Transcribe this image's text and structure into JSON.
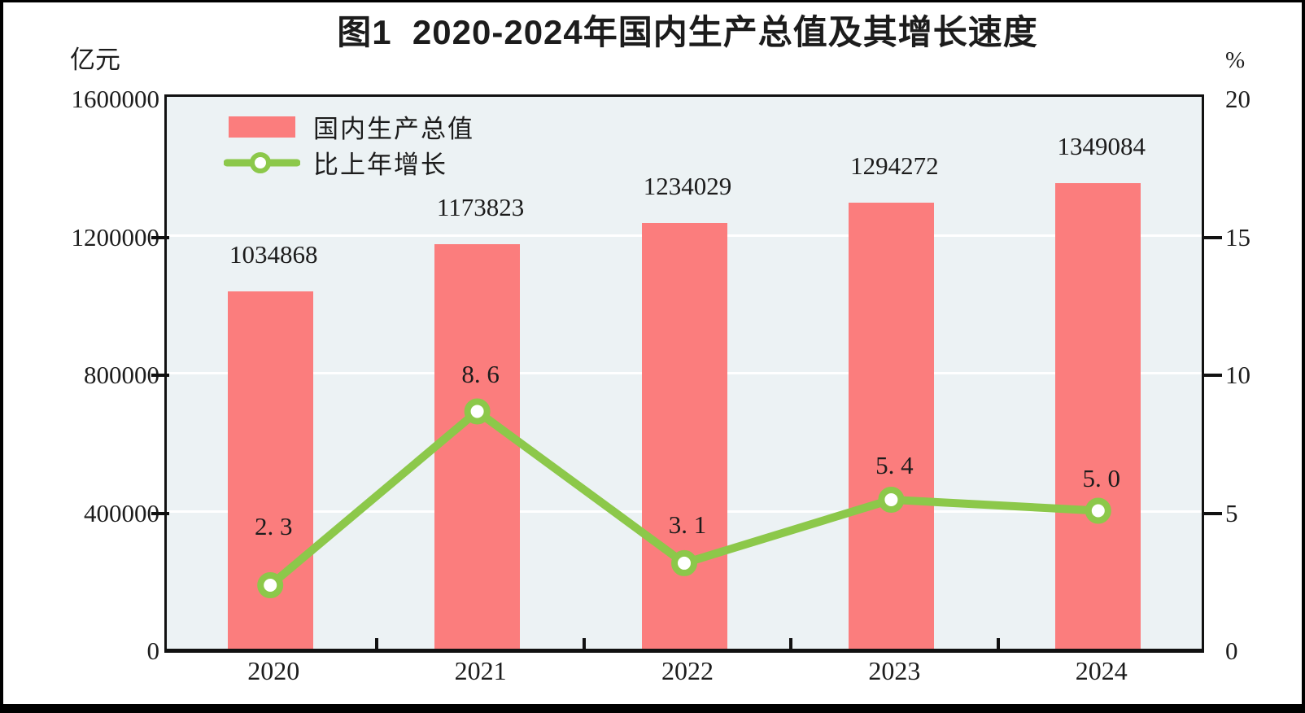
{
  "figure": {
    "border_color": "#000000",
    "background": "#ffffff"
  },
  "chart_data": {
    "type": "bar+line",
    "title": "图1  2020-2024年国内生产总值及其增长速度",
    "categories": [
      "2020",
      "2021",
      "2022",
      "2023",
      "2024"
    ],
    "series": [
      {
        "name": "国内生产总值",
        "type": "bar",
        "axis": "left",
        "values": [
          1034868,
          1173823,
          1234029,
          1294272,
          1349084
        ],
        "labels": [
          "1034868",
          "1173823",
          "1234029",
          "1294272",
          "1349084"
        ],
        "color": "#fb7d7d"
      },
      {
        "name": "比上年增长",
        "type": "line",
        "axis": "right",
        "values": [
          2.3,
          8.6,
          3.1,
          5.4,
          5.0
        ],
        "labels": [
          "2. 3",
          "8. 6",
          "3. 1",
          "5. 4",
          "5. 0"
        ],
        "color": "#8cc84a",
        "marker_fill": "#ffffff"
      }
    ],
    "left_axis": {
      "title": "亿元",
      "min": 0,
      "max": 1600000,
      "ticks": [
        0,
        400000,
        800000,
        1200000,
        1600000
      ],
      "tick_labels": [
        "0",
        "400000",
        "800000",
        "1200000",
        "1600000"
      ]
    },
    "right_axis": {
      "title": "%",
      "min": 0,
      "max": 20,
      "ticks": [
        0,
        5,
        10,
        15,
        20
      ],
      "tick_labels": [
        "0",
        "5",
        "10",
        "15",
        "20"
      ]
    },
    "plot_background": "#ecf2f4",
    "gridline_color": "#ffffff",
    "axis_color": "#111111",
    "grid": true,
    "legend_position": "top-left"
  }
}
